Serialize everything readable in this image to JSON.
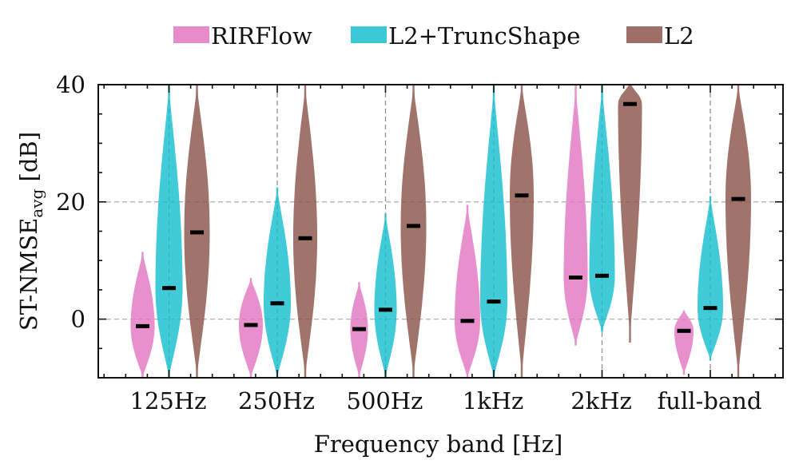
{
  "chart_data": {
    "type": "violin",
    "title": "",
    "xlabel": "Frequency band [Hz]",
    "ylabel": {
      "base": "ST-NMSE",
      "subscript": "avg",
      "suffix": " [dB]"
    },
    "categories": [
      "125Hz",
      "250Hz",
      "500Hz",
      "1kHz",
      "2kHz",
      "full-band"
    ],
    "ylim": [
      -10,
      40
    ],
    "yticks": [
      0,
      20,
      40
    ],
    "grid": "dashed",
    "legend_position": "top-center",
    "colors": {
      "RIRFlow": "#e377c2",
      "L2+TruncShape": "#17becf",
      "L2": "#8c564b"
    },
    "series": [
      {
        "name": "RIRFlow",
        "medians": [
          -1.2,
          -1.0,
          -1.7,
          -0.3,
          7.1,
          -2.0
        ],
        "ranges": [
          [
            -10,
            11.5
          ],
          [
            -10,
            7.0
          ],
          [
            -10,
            6.3
          ],
          [
            -10,
            19.5
          ],
          [
            -4.5,
            40
          ],
          [
            -9.5,
            1.5
          ]
        ],
        "max_halfwidth": [
          15,
          15,
          11,
          16,
          15,
          12
        ]
      },
      {
        "name": "L2+TruncShape",
        "medians": [
          5.3,
          2.7,
          1.6,
          3.0,
          7.4,
          1.9
        ],
        "ranges": [
          [
            -10,
            40
          ],
          [
            -10,
            22.5
          ],
          [
            -10,
            18.0
          ],
          [
            -10,
            40
          ],
          [
            -2.2,
            40
          ],
          [
            -7,
            21
          ]
        ],
        "max_halfwidth": [
          17,
          17,
          14,
          17,
          16,
          16
        ]
      },
      {
        "name": "L2",
        "medians": [
          14.8,
          13.8,
          15.9,
          21.1,
          36.7,
          20.5
        ],
        "ranges": [
          [
            -10,
            40
          ],
          [
            -10,
            40
          ],
          [
            -10,
            40
          ],
          [
            -10,
            40
          ],
          [
            -4,
            40
          ],
          [
            -10,
            40
          ]
        ],
        "max_halfwidth": [
          16,
          15,
          16,
          15,
          15,
          16
        ]
      }
    ]
  }
}
